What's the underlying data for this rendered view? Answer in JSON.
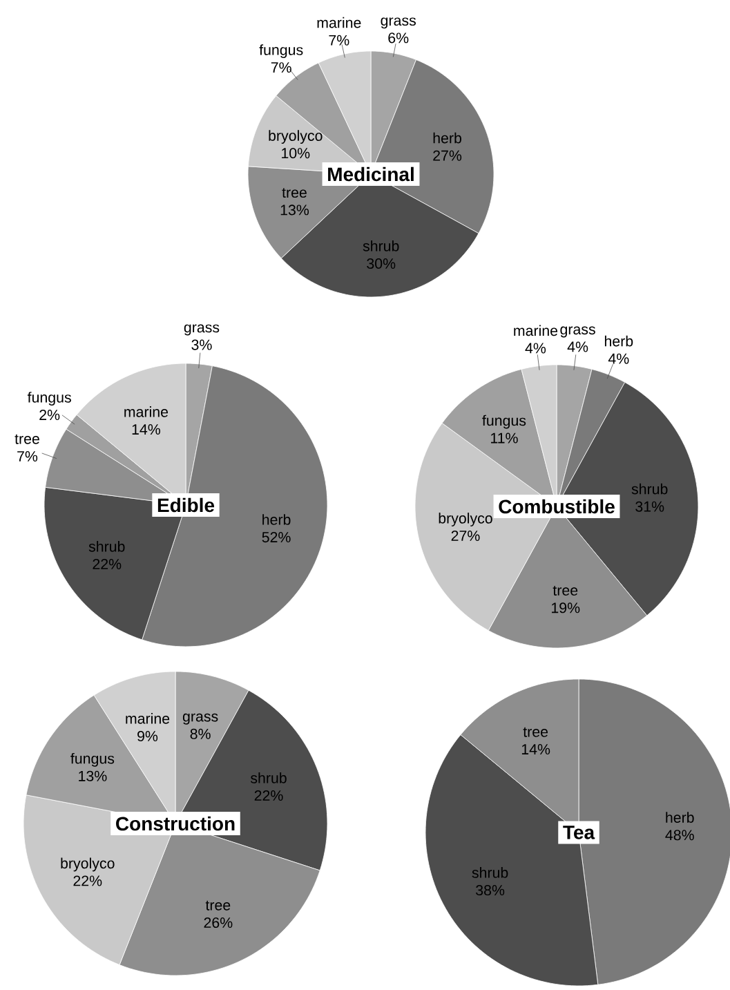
{
  "chart_data": [
    {
      "type": "pie",
      "title": "Medicinal",
      "categories": [
        "grass",
        "herb",
        "shrub",
        "tree",
        "bryolyco",
        "fungus",
        "marine"
      ],
      "values": [
        6,
        27,
        30,
        13,
        10,
        7,
        7
      ],
      "value_labels": [
        "6%",
        "27%",
        "30%",
        "13%",
        "10%",
        "7%",
        "7%"
      ],
      "colors": [
        "#a5a5a5",
        "#7a7a7a",
        "#4d4d4d",
        "#8e8e8e",
        "#c9c9c9",
        "#a0a0a0",
        "#d0d0d0"
      ]
    },
    {
      "type": "pie",
      "title": "Edible",
      "categories": [
        "grass",
        "herb",
        "shrub",
        "tree",
        "fungus",
        "marine"
      ],
      "values": [
        3,
        52,
        22,
        7,
        2,
        14
      ],
      "value_labels": [
        "3%",
        "52%",
        "22%",
        "7%",
        "2%",
        "14%"
      ],
      "colors": [
        "#a5a5a5",
        "#7a7a7a",
        "#4d4d4d",
        "#8e8e8e",
        "#a0a0a0",
        "#d0d0d0"
      ]
    },
    {
      "type": "pie",
      "title": "Combustible",
      "categories": [
        "grass",
        "herb",
        "shrub",
        "tree",
        "bryolyco",
        "fungus",
        "marine"
      ],
      "values": [
        4,
        4,
        31,
        19,
        27,
        11,
        4
      ],
      "value_labels": [
        "4%",
        "4%",
        "31%",
        "19%",
        "27%",
        "11%",
        "4%"
      ],
      "colors": [
        "#a5a5a5",
        "#7a7a7a",
        "#4d4d4d",
        "#8e8e8e",
        "#c9c9c9",
        "#a0a0a0",
        "#d0d0d0"
      ]
    },
    {
      "type": "pie",
      "title": "Construction",
      "categories": [
        "grass",
        "shrub",
        "tree",
        "bryolyco",
        "fungus",
        "marine"
      ],
      "values": [
        8,
        22,
        26,
        22,
        13,
        9
      ],
      "value_labels": [
        "8%",
        "22%",
        "26%",
        "22%",
        "13%",
        "9%"
      ],
      "colors": [
        "#a5a5a5",
        "#4d4d4d",
        "#8e8e8e",
        "#c9c9c9",
        "#a0a0a0",
        "#d0d0d0"
      ]
    },
    {
      "type": "pie",
      "title": "Tea",
      "categories": [
        "herb",
        "shrub",
        "tree"
      ],
      "values": [
        48,
        38,
        14
      ],
      "value_labels": [
        "48%",
        "38%",
        "14%"
      ],
      "colors": [
        "#7a7a7a",
        "#4d4d4d",
        "#8e8e8e"
      ]
    }
  ]
}
